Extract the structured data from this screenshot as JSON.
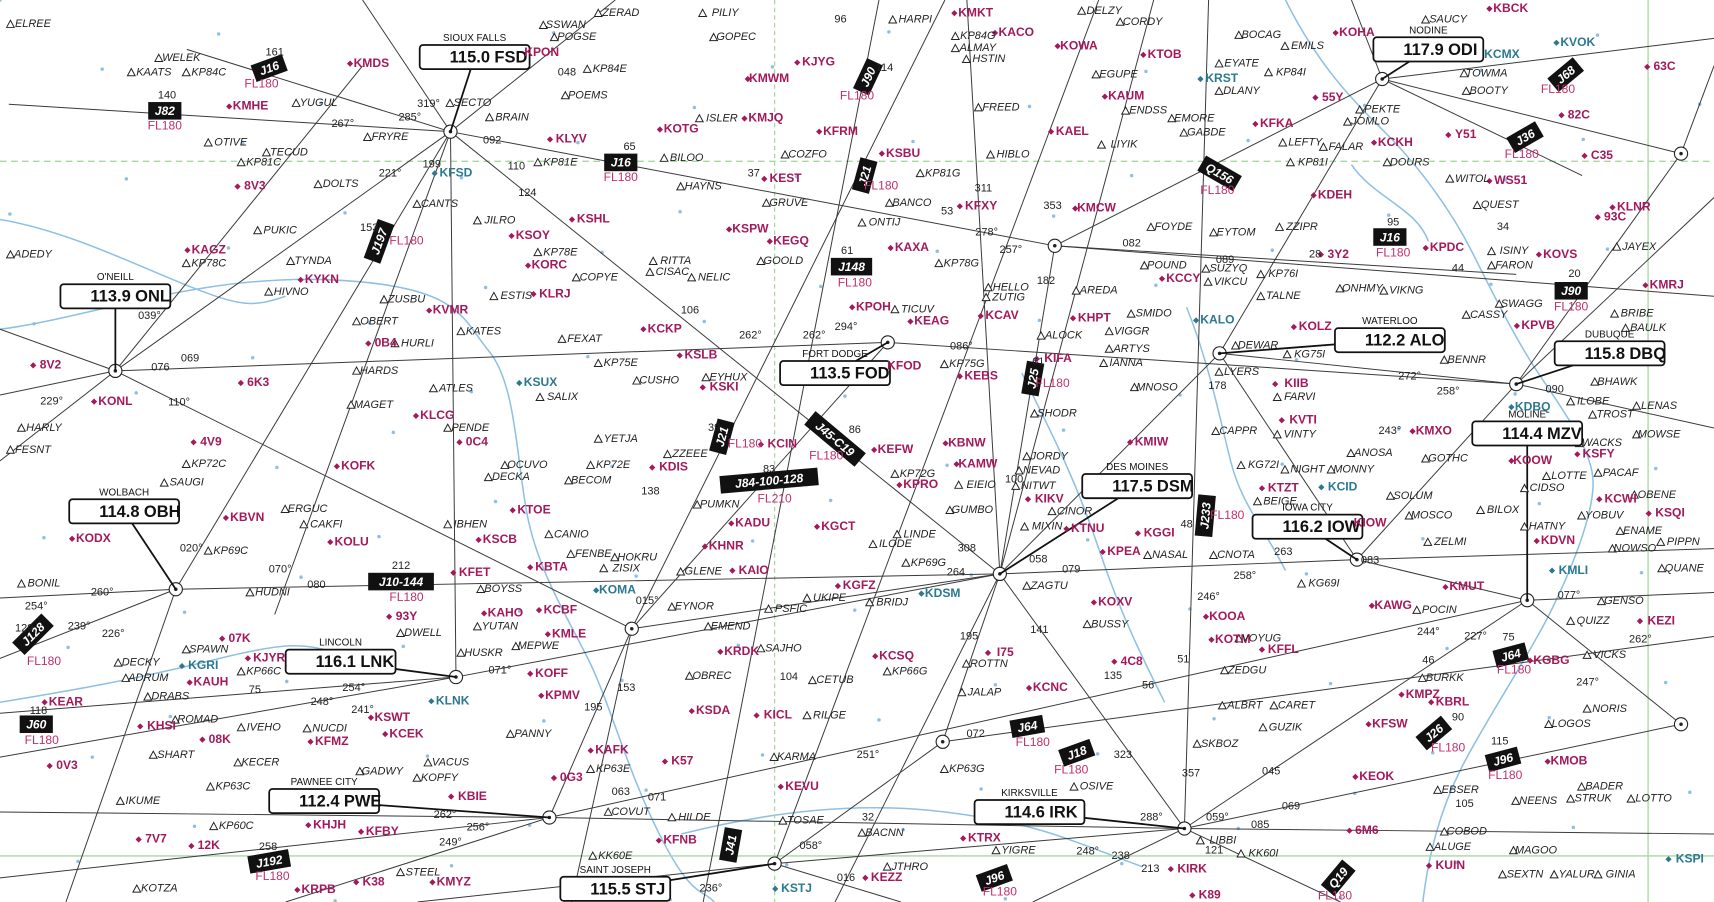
{
  "colors": {
    "airport": "#a3195b",
    "towered_airport": "#2c7891",
    "fix": "#222222",
    "airway_box": "#111111",
    "airway_floor": "#c0306e",
    "route": "#3a3a3a",
    "water": "#8fc0e4",
    "boundary": "#a6d9a0"
  },
  "vors": [
    {
      "name": "SIOUX FALLS",
      "freq": "115.0",
      "id": "FSD"
    },
    {
      "name": "O'NEILL",
      "freq": "113.9",
      "id": "ONL"
    },
    {
      "name": "FORT DODGE",
      "freq": "113.5",
      "id": "FOD"
    },
    {
      "name": "WATERLOO",
      "freq": "112.2",
      "id": "ALO"
    },
    {
      "name": "DUBUQUE",
      "freq": "115.8",
      "id": "DBQ"
    },
    {
      "name": "MOLINE",
      "freq": "114.4",
      "id": "MZV"
    },
    {
      "name": "DES MOINES",
      "freq": "117.5",
      "id": "DSM"
    },
    {
      "name": "IOWA CITY",
      "freq": "116.2",
      "id": "IOW"
    },
    {
      "name": "WOLBACH",
      "freq": "114.8",
      "id": "OBH"
    },
    {
      "name": "LINCOLN",
      "freq": "116.1",
      "id": "LNK"
    },
    {
      "name": "PAWNEE CITY",
      "freq": "112.4",
      "id": "PWE"
    },
    {
      "name": "KIRKSVILLE",
      "freq": "114.6",
      "id": "IRK"
    },
    {
      "name": "SAINT JOSEPH",
      "freq": "115.5",
      "id": "STJ"
    },
    {
      "name": "NODINE",
      "freq": "117.9",
      "id": "ODI"
    }
  ],
  "airways": [
    {
      "id": "J16",
      "floor": "FL180"
    },
    {
      "id": "J82",
      "floor": "FL180"
    },
    {
      "id": "J16",
      "floor": "FL180"
    },
    {
      "id": "J90",
      "floor": "FL180"
    },
    {
      "id": "J21",
      "floor": "FL180"
    },
    {
      "id": "J197",
      "floor": "FL180"
    },
    {
      "id": "J148",
      "floor": "FL180"
    },
    {
      "id": "J25",
      "floor": "FL180"
    },
    {
      "id": "J21",
      "floor": "FL180"
    },
    {
      "id": "J45-C19",
      "floor": "FL180"
    },
    {
      "id": "J84-100-128",
      "floor": "FL210"
    },
    {
      "id": "J10-144",
      "floor": "FL180"
    },
    {
      "id": "J233",
      "floor": "FL180"
    },
    {
      "id": "J64",
      "floor": "FL180"
    },
    {
      "id": "J18",
      "floor": "FL180"
    },
    {
      "id": "J128",
      "floor": "FL180"
    },
    {
      "id": "J60",
      "floor": "FL180"
    },
    {
      "id": "J192",
      "floor": "FL180"
    },
    {
      "id": "J96",
      "floor": "FL180"
    },
    {
      "id": "J41"
    },
    {
      "id": "Q156",
      "floor": "FL180"
    },
    {
      "id": "J16",
      "floor": "FL180"
    },
    {
      "id": "J90",
      "floor": "FL180"
    },
    {
      "id": "J68",
      "floor": "FL180"
    },
    {
      "id": "J36",
      "floor": "FL180"
    },
    {
      "id": "J64",
      "floor": "FL180"
    },
    {
      "id": "J26",
      "floor": "FL180"
    },
    {
      "id": "J96",
      "floor": "FL180"
    },
    {
      "id": "Q19",
      "floor": "FL180"
    }
  ],
  "airports": [
    "KMDS",
    "KPON",
    "KMHE",
    "8V3",
    "KLYV",
    "KOTG",
    "KMJQ",
    "KMWM",
    "KJYG",
    "KMKT",
    "KACO",
    "KOWA",
    "KTOB",
    "KAUM",
    "KAEL",
    "KFRM",
    "KSBU",
    "KEST",
    "KFXY",
    "KMCW",
    "KSPW",
    "KEGQ",
    "KSHL",
    "KSOY",
    "KORC",
    "KLRJ",
    "KAXA",
    "KPOH",
    "KEAG",
    "KCAV",
    "KHPT",
    "KIFA",
    "KCKP",
    "KSLB",
    "KSKI",
    "KFOD",
    "KEBS",
    "KVMR",
    "0B4",
    "6K3",
    "KYKN",
    "KAGZ",
    "KONL",
    "8V2",
    "KLCG",
    "0C4",
    "KOFK",
    "4V9",
    "KCIN",
    "KEFW",
    "KBNW",
    "KAMW",
    "KPRO",
    "KDIS",
    "KTOE",
    "KSCB",
    "KOLU",
    "KBVN",
    "KODX",
    "KFET",
    "KAHO",
    "KCBF",
    "KMLE",
    "KOFF",
    "KPMV",
    "KADU",
    "KHNR",
    "KAIO",
    "KBTA",
    "KGCT",
    "KGFZ",
    "KIKV",
    "KTNU",
    "KGGI",
    "KPEA",
    "KMIW",
    "KOXV",
    "KOOA",
    "KOTM",
    "KFFL",
    "4C8",
    "KCNC",
    "I75",
    "KCSQ",
    "KRDK",
    "KSDA",
    "KICL",
    "KAFK",
    "K57",
    "KEVU",
    "0G3",
    "KFNB",
    "KTRX",
    "KIRK",
    "K89",
    "KEZZ",
    "K38",
    "KMYZ",
    "KRPB",
    "KHJH",
    "KFBY",
    "KBIE",
    "7V7",
    "12K",
    "0V3",
    "08K",
    "KHSI",
    "KCEK",
    "KSWT",
    "KFMZ",
    "KJYR",
    "KAUH",
    "07K",
    "93Y",
    "KEAR",
    "KTZT",
    "KVTI",
    "KIIB",
    "KOLZ",
    "KCCY",
    "KOHA",
    "KCKH",
    "KFKA",
    "55Y",
    "Y51",
    "WS51",
    "KDEH",
    "KOVS",
    "KLNR",
    "93C",
    "KMRJ",
    "KPVB",
    "KPDC",
    "3Y2",
    "KMXO",
    "KOOW",
    "KSFY",
    "KCWI",
    "KSQI",
    "KDVN",
    "KMUT",
    "KEZI",
    "KAWG",
    "KIOW",
    "KBRL",
    "KMPZ",
    "KFSW",
    "KGBG",
    "KMOB",
    "KEOK",
    "6M6",
    "KUIN",
    "82C",
    "C35",
    "63C",
    "KBCK"
  ],
  "towered_airports": [
    "KFSD",
    "KSUX",
    "KOMA",
    "KDSM",
    "KLNK",
    "KGRI",
    "KALO",
    "KRST",
    "KCID",
    "KDBQ",
    "KMLI",
    "KCMX",
    "KVOK",
    "KSTJ",
    "KSPI"
  ],
  "fixes": [
    "ELREE",
    "WELEK",
    "KAATS",
    "KP84C",
    "YUGUL",
    "FRYRE",
    "OTIVE",
    "TECUD",
    "KP81C",
    "DOLTS",
    "PUKIC",
    "TYNDA",
    "KP78C",
    "HIVNO",
    "ZUSBU",
    "OBERT",
    "HURLI",
    "KATES",
    "HARDS",
    "ESTIS",
    "ATLES",
    "MAGET",
    "PENDE",
    "SAUGI",
    "KP72C",
    "ERGUC",
    "CAKFI",
    "KP69C",
    "HUDNI",
    "BONIL",
    "IBHEN",
    "OCUVO",
    "DECKA",
    "BECOM",
    "YETJA",
    "KP72E",
    "ZZEEE",
    "PUMKN",
    "CANIO",
    "FENBE",
    "HOKRU",
    "ZISIX",
    "GLENE",
    "BOYSS",
    "YUTAN",
    "MEPWE",
    "HUSKR",
    "DWELL",
    "SPAWN",
    "DECKY",
    "ADRUM",
    "KP66C",
    "DRABS",
    "ROMAD",
    "IVEHO",
    "NUCDI",
    "SHART",
    "KECER",
    "GADWY",
    "VACUS",
    "KOPFY",
    "IKUME",
    "KP63C",
    "KP60C",
    "KOTZA",
    "STEEL",
    "PANNY",
    "EYNOR",
    "EMEND",
    "PSFIC",
    "SAJHO",
    "OBREC",
    "CETUB",
    "RILGE",
    "KARMA",
    "KP63E",
    "COVUT",
    "HILDE",
    "TOSAE",
    "BACNN",
    "KK60E",
    "JTHRO",
    "YIGRE",
    "UKIPE",
    "BRIDJ",
    "KP66G",
    "ROTTN",
    "JALAP",
    "KP63G",
    "OSIVE",
    "LIBBI",
    "KK60I",
    "ALUGE",
    "COBOD",
    "EBSER",
    "NEENS",
    "MAGOO",
    "SEXTN",
    "YALUR",
    "GINIA",
    "BADER",
    "STRUK",
    "LOTTO",
    "LOGOS",
    "NORIS",
    "VICKS",
    "QUIZZ",
    "GENSO",
    "POCIN",
    "BURKK",
    "CARET",
    "ALBRT",
    "GUZIK",
    "SKBOZ",
    "VOYUG",
    "ZEDGU",
    "BUSSY",
    "ZAGTU",
    "NASAL",
    "CNOTA",
    "KG69I",
    "ZELMI",
    "MOSCO",
    "BILOX",
    "SOLUM",
    "BEIGE",
    "NIGHT",
    "MONNY",
    "ANOSA",
    "KG72I",
    "GOTHC",
    "CIDSO",
    "LOTTE",
    "OBENE",
    "YOBUV",
    "ENAME",
    "NOWSO",
    "PIPPN",
    "QUANE",
    "HATNY",
    "LENAS",
    "MOWSE",
    "WACKS",
    "PACAF",
    "BHAWK",
    "ILOBE",
    "TROST",
    "BENNR",
    "LYERS",
    "FARVI",
    "VINTY",
    "CAPPR",
    "MNOSO",
    "DEWAR",
    "KG75I",
    "TALNE",
    "ONHMY",
    "VIKNG",
    "KP76I",
    "SUZYQ",
    "VIKCU",
    "POUND",
    "FOYDE",
    "EYTOM",
    "ZZIPR",
    "QUEST",
    "WITOL",
    "ISINY",
    "FARON",
    "CASSY",
    "SWAGG",
    "JAYEX",
    "BRIBE",
    "BAULK",
    "KP81I",
    "LEFTY",
    "FALAR",
    "JOMLO",
    "PEKTE",
    "DOURS",
    "BOOTY",
    "TOWMA",
    "SAUCY",
    "EMILS",
    "BOCAG",
    "EYATE",
    "DLANY",
    "KP84I",
    "EMORE",
    "GABDE",
    "LIYIK",
    "EGUPE",
    "ENDSS",
    "CORDY",
    "DELZY",
    "FREED",
    "HIBLO",
    "KP81G",
    "BANCO",
    "ONTIJ",
    "GRUVE",
    "COZFO",
    "HAYNS",
    "BILOO",
    "ISLER",
    "KP81E",
    "BRAIN",
    "SECTO",
    "POEMS",
    "POGSE",
    "SSWAN",
    "ZERAD",
    "PILIY",
    "GOPEC",
    "KP84E",
    "HARPI",
    "KP84G",
    "ALMAY",
    "HSTIN",
    "CANTS",
    "JILRO",
    "KP78E",
    "COPYE",
    "RITTA",
    "CISAC",
    "NELIC",
    "GOOLD",
    "KP78G",
    "HELLO",
    "ZUTIG",
    "TICUV",
    "AREDA",
    "SMIDO",
    "VIGGR",
    "ARTYS",
    "IANNA",
    "ALOCK",
    "SHODR",
    "FEXAT",
    "KP75E",
    "CUSHO",
    "SALIX",
    "EYHUX",
    "KP75G",
    "JORDY",
    "NEVAD",
    "NITWT",
    "EIEIO",
    "KP72G",
    "GUMBO",
    "CINOR",
    "MIXIN",
    "LINDE",
    "ILODE",
    "KP69G",
    "ADEDY",
    "HARLY",
    "FESNT"
  ],
  "route_labels": [
    "161",
    "140",
    "267°",
    "285°",
    "319°",
    "092",
    "110",
    "124",
    "221°",
    "199",
    "153",
    "048",
    "65",
    "37",
    "96",
    "114",
    "53",
    "278°",
    "311",
    "353",
    "257°",
    "082",
    "089",
    "28",
    "95",
    "34",
    "44",
    "20",
    "61",
    "262°",
    "262°",
    "294°",
    "106",
    "086°",
    "076",
    "069",
    "039°",
    "229°",
    "110°",
    "272°",
    "258°",
    "090",
    "243°",
    "39",
    "86",
    "83",
    "138",
    "212",
    "070°",
    "080",
    "020°",
    "260°",
    "254°",
    "239°",
    "226°",
    "129",
    "015°",
    "071°",
    "254°",
    "248°",
    "241°",
    "118",
    "75",
    "153",
    "195",
    "104",
    "063",
    "071",
    "262°",
    "256°",
    "249°",
    "258",
    "058°",
    "236°",
    "016",
    "32",
    "251°",
    "072",
    "248°",
    "238",
    "288°",
    "213",
    "121",
    "059°",
    "085",
    "069",
    "045",
    "357",
    "323",
    "135",
    "56",
    "51",
    "195",
    "141",
    "308",
    "264",
    "058",
    "079",
    "263",
    "258°",
    "083",
    "246°",
    "48",
    "182",
    "61",
    "100",
    "178",
    "244°",
    "227°",
    "262°",
    "247°",
    "46",
    "75",
    "90",
    "115",
    "105",
    "077°"
  ]
}
